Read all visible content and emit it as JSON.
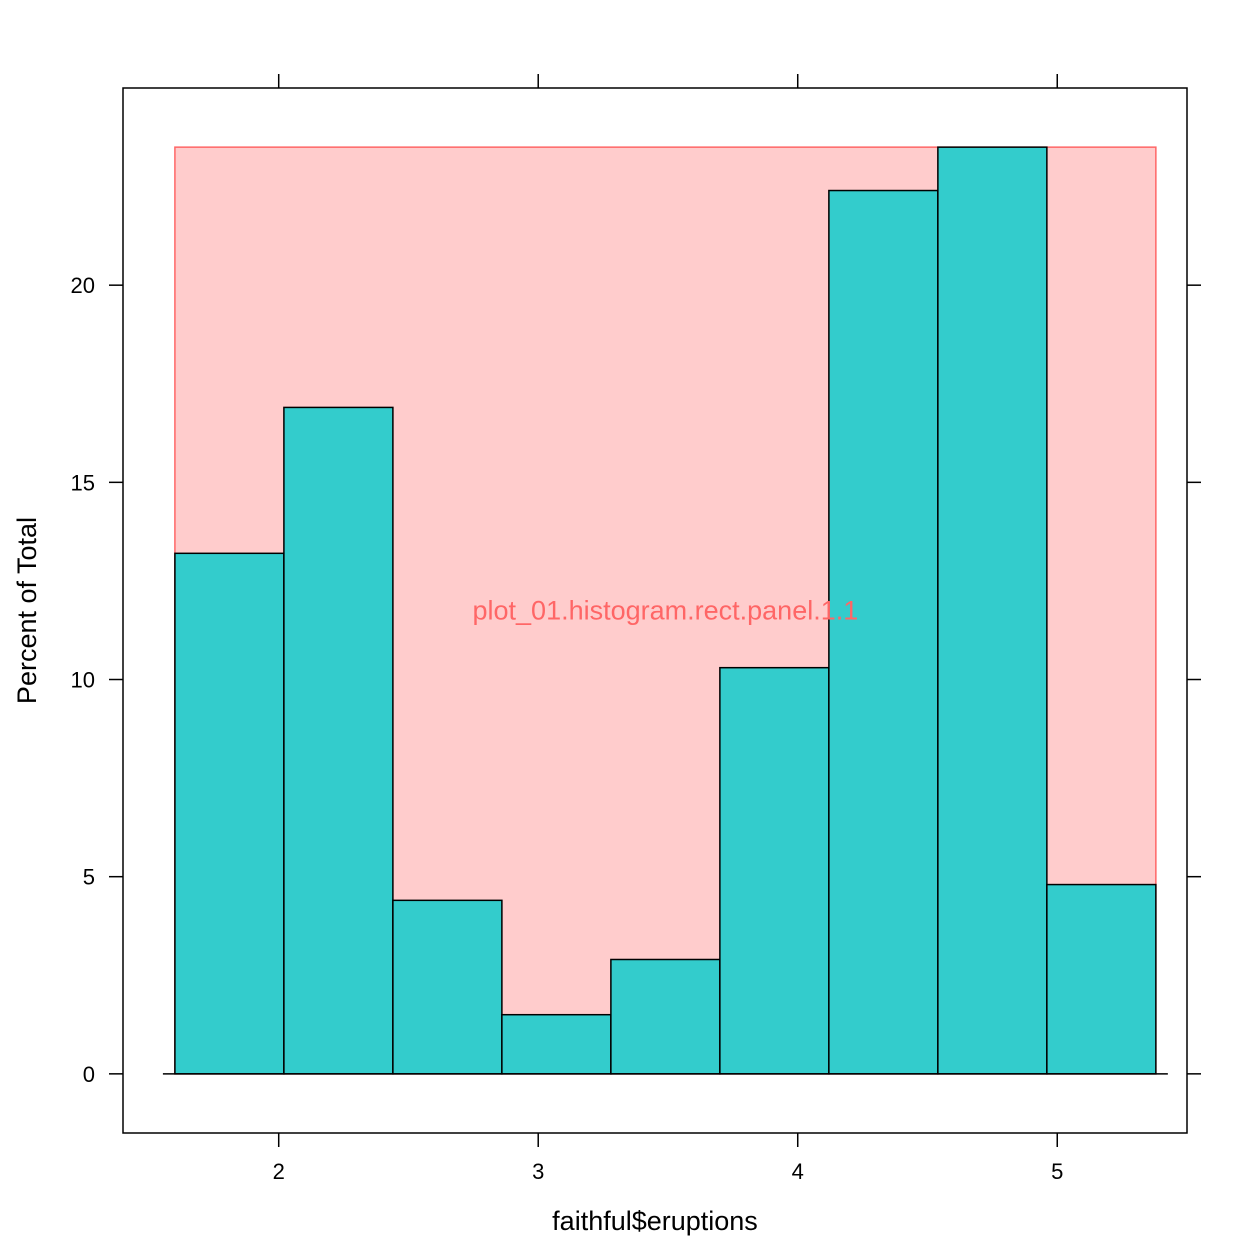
{
  "chart_data": {
    "type": "bar",
    "subtype": "histogram",
    "xlabel": "faithful$eruptions",
    "ylabel": "Percent of Total",
    "xlim": [
      1.4,
      5.5
    ],
    "ylim": [
      -1.5,
      25
    ],
    "x_ticks": [
      2,
      3,
      4,
      5
    ],
    "y_ticks": [
      0,
      5,
      10,
      15,
      20
    ],
    "bins": [
      {
        "x0": 1.6,
        "x1": 2.02,
        "value": 13.2
      },
      {
        "x0": 2.02,
        "x1": 2.44,
        "value": 16.9
      },
      {
        "x0": 2.44,
        "x1": 2.86,
        "value": 4.4
      },
      {
        "x0": 2.86,
        "x1": 3.28,
        "value": 1.5
      },
      {
        "x0": 3.28,
        "x1": 3.7,
        "value": 2.9
      },
      {
        "x0": 3.7,
        "x1": 4.12,
        "value": 10.3
      },
      {
        "x0": 4.12,
        "x1": 4.54,
        "value": 22.4
      },
      {
        "x0": 4.54,
        "x1": 4.96,
        "value": 23.5
      },
      {
        "x0": 4.96,
        "x1": 5.38,
        "value": 4.8
      }
    ],
    "annotation": {
      "text": "plot_01.histogram.rect.panel.1.1",
      "color": "#FF6666"
    },
    "bar_fill": "#33CCCC",
    "bar_stroke": "#000000",
    "highlight_fill": "#FFCCCC",
    "highlight_stroke": "#FF6666",
    "grid": false
  }
}
